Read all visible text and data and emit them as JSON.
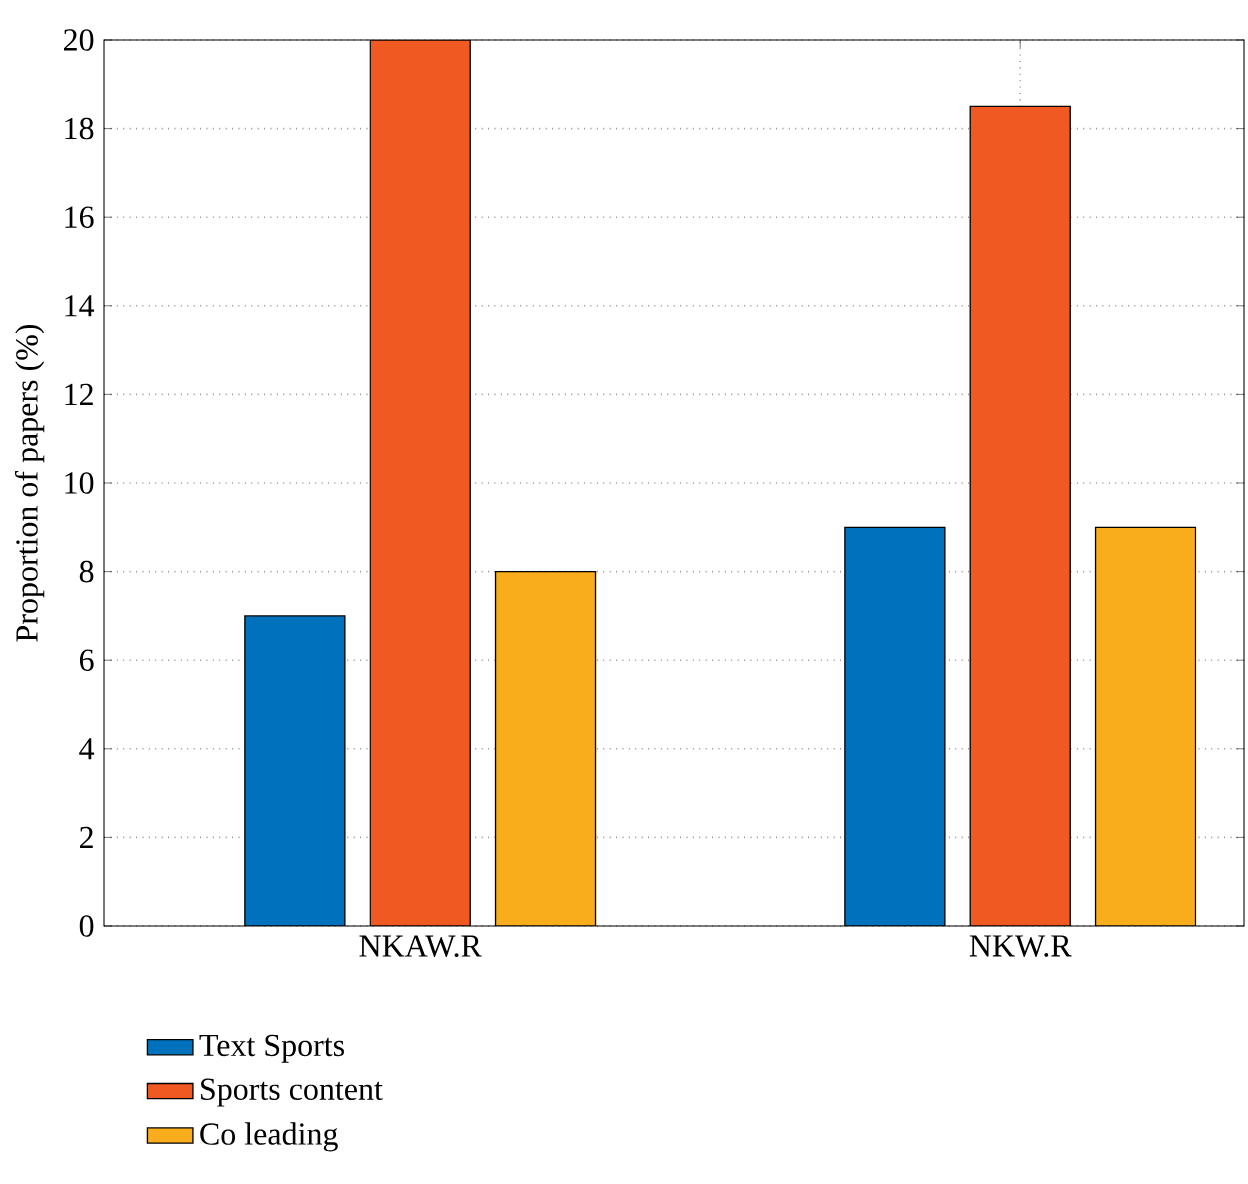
{
  "chart_data": {
    "type": "bar",
    "ylabel": "Proportion of papers (%)",
    "categories": [
      "NKAW.R",
      "NKW.R"
    ],
    "series": [
      {
        "name": "Text Sports",
        "color": "#0072bd",
        "values": [
          7,
          9
        ]
      },
      {
        "name": "Sports content",
        "color": "#f05a22",
        "values": [
          20,
          18.5
        ]
      },
      {
        "name": "Co leading",
        "color": "#f9ac1c",
        "values": [
          8,
          9
        ]
      }
    ],
    "ylim": [
      0,
      20
    ],
    "yticks": [
      0,
      2,
      4,
      6,
      8,
      10,
      12,
      14,
      16,
      18,
      20
    ],
    "grid": true,
    "legend": "bottom"
  }
}
